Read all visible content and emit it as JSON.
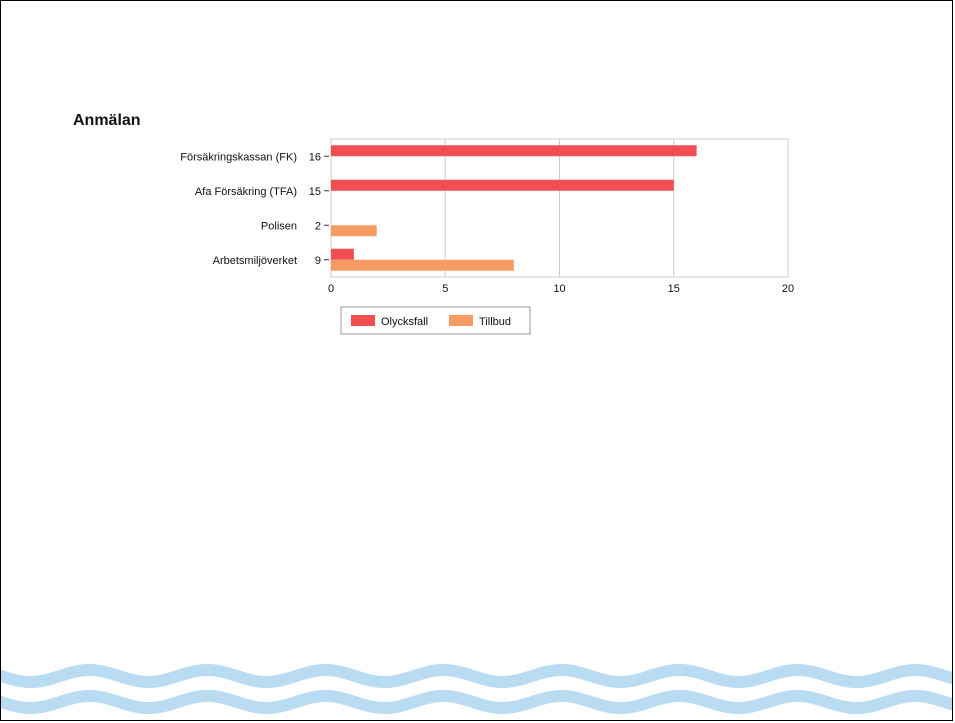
{
  "slide": {
    "title": "Anmälan"
  },
  "colors": {
    "Olycksfall": "#f04e50",
    "Tillbud": "#f89b62",
    "wave": "#b9dcf3",
    "grid": "#cccccc",
    "frame": "#cccccc"
  },
  "chart_data": {
    "type": "bar",
    "orientation": "horizontal",
    "title": "Anmälan",
    "categories": [
      "Försäkringskassan (FK)",
      "Afa Försäkring (TFA)",
      "Polisen",
      "Arbetsmiljöverket"
    ],
    "category_totals": [
      16,
      15,
      2,
      9
    ],
    "series": [
      {
        "name": "Olycksfall",
        "values": [
          16,
          15,
          0,
          1
        ]
      },
      {
        "name": "Tillbud",
        "values": [
          0,
          0,
          2,
          8
        ]
      }
    ],
    "xlim": [
      0,
      20
    ],
    "xticks": [
      0,
      5,
      10,
      15,
      20
    ],
    "grid": true,
    "legend": "bottom"
  }
}
